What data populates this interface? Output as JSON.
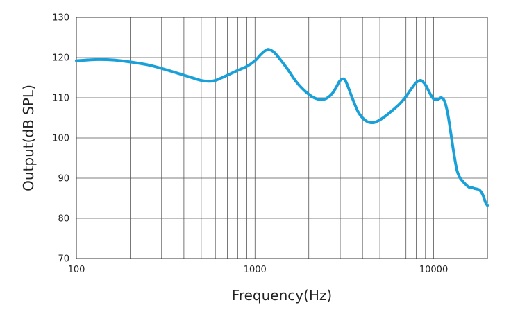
{
  "chart_data": {
    "type": "line",
    "title": "",
    "xlabel": "Frequency(Hz)",
    "ylabel": "Output(dB SPL)",
    "x_scale": "log",
    "xlim": [
      100,
      20000
    ],
    "ylim": [
      70,
      130
    ],
    "grid": true,
    "legend": "none",
    "x_tick_labels": [
      {
        "value": 100,
        "label": "100"
      },
      {
        "value": 1000,
        "label": "1000"
      },
      {
        "value": 10000,
        "label": "10000"
      }
    ],
    "y_tick_labels": [
      {
        "value": 70,
        "label": "70"
      },
      {
        "value": 80,
        "label": "80"
      },
      {
        "value": 90,
        "label": "90"
      },
      {
        "value": 100,
        "label": "100"
      },
      {
        "value": 110,
        "label": "110"
      },
      {
        "value": 120,
        "label": "120"
      },
      {
        "value": 130,
        "label": "130"
      }
    ],
    "series": [
      {
        "color": "#1aa0d8",
        "x": [
          100,
          130,
          160,
          200,
          250,
          300,
          350,
          400,
          450,
          500,
          550,
          600,
          700,
          800,
          900,
          1000,
          1080,
          1150,
          1200,
          1300,
          1500,
          1700,
          1900,
          2100,
          2300,
          2500,
          2700,
          2850,
          3000,
          3200,
          3500,
          3800,
          4200,
          4600,
          5000,
          5500,
          6000,
          6500,
          7000,
          7500,
          8000,
          8500,
          9000,
          9500,
          10000,
          10500,
          11000,
          11500,
          12000,
          12500,
          13000,
          13500,
          14000,
          14500,
          15000,
          15500,
          16000,
          16500,
          17000,
          17500,
          18000,
          18500,
          19000,
          19500,
          20000
        ],
        "y": [
          119.2,
          119.5,
          119.4,
          118.9,
          118.2,
          117.3,
          116.4,
          115.6,
          114.9,
          114.3,
          114.1,
          114.3,
          115.6,
          116.8,
          117.8,
          119.2,
          120.8,
          121.8,
          122.0,
          121.0,
          117.5,
          114.0,
          111.7,
          110.2,
          109.6,
          109.8,
          111.0,
          112.6,
          114.3,
          114.3,
          110.0,
          106.3,
          104.2,
          103.8,
          104.5,
          105.8,
          107.2,
          108.6,
          110.3,
          112.2,
          113.8,
          114.3,
          113.2,
          111.2,
          109.7,
          109.5,
          110.0,
          109.2,
          106.0,
          101.0,
          96.0,
          92.0,
          90.2,
          89.3,
          88.6,
          88.0,
          87.6,
          87.6,
          87.4,
          87.3,
          87.1,
          86.5,
          85.5,
          84.0,
          83.2
        ]
      }
    ]
  }
}
